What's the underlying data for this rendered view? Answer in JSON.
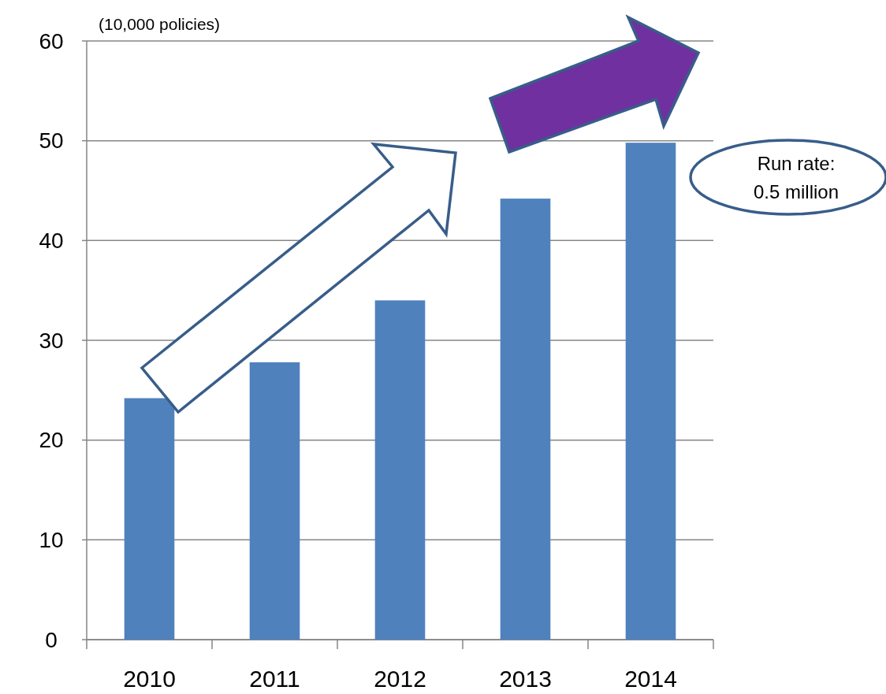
{
  "chart_data": {
    "type": "bar",
    "ylabel": "(10,000 policies)",
    "categories": [
      "2010",
      "2011",
      "2012",
      "2013",
      "2014"
    ],
    "values": [
      24.2,
      27.8,
      34,
      44.2,
      49.8
    ],
    "color": "#4f81bd",
    "ylim": [
      0,
      60
    ],
    "yticks": [
      0,
      10,
      20,
      30,
      40,
      50,
      60
    ],
    "grid": "y",
    "annotations": [
      "Run rate:\n0.5 million"
    ]
  }
}
